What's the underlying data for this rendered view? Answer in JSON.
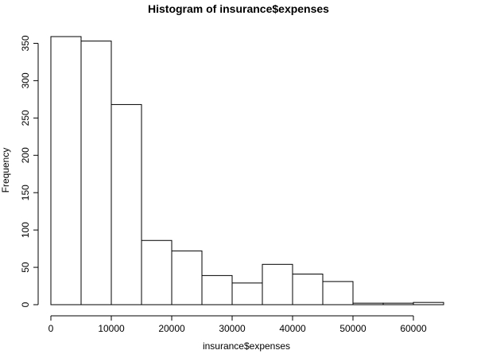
{
  "chart_data": {
    "type": "bar",
    "title": "Histogram of insurance$expenses",
    "xlabel": "insurance$expenses",
    "ylabel": "Frequency",
    "bins": [
      {
        "from": 0,
        "to": 5000,
        "count": 359
      },
      {
        "from": 5000,
        "to": 10000,
        "count": 353
      },
      {
        "from": 10000,
        "to": 15000,
        "count": 268
      },
      {
        "from": 15000,
        "to": 20000,
        "count": 86
      },
      {
        "from": 20000,
        "to": 25000,
        "count": 72
      },
      {
        "from": 25000,
        "to": 30000,
        "count": 39
      },
      {
        "from": 30000,
        "to": 35000,
        "count": 29
      },
      {
        "from": 35000,
        "to": 40000,
        "count": 54
      },
      {
        "from": 40000,
        "to": 45000,
        "count": 41
      },
      {
        "from": 45000,
        "to": 50000,
        "count": 31
      },
      {
        "from": 50000,
        "to": 55000,
        "count": 2
      },
      {
        "from": 55000,
        "to": 60000,
        "count": 2
      },
      {
        "from": 60000,
        "to": 65000,
        "count": 3
      }
    ],
    "xticks": [
      0,
      10000,
      20000,
      30000,
      40000,
      50000,
      60000
    ],
    "yticks": [
      0,
      50,
      100,
      150,
      200,
      250,
      300,
      350
    ],
    "xlim": [
      0,
      65000
    ],
    "ylim": [
      0,
      359
    ],
    "grid": false,
    "colors": {
      "bar_fill": "#ffffff",
      "bar_stroke": "#000000"
    }
  }
}
